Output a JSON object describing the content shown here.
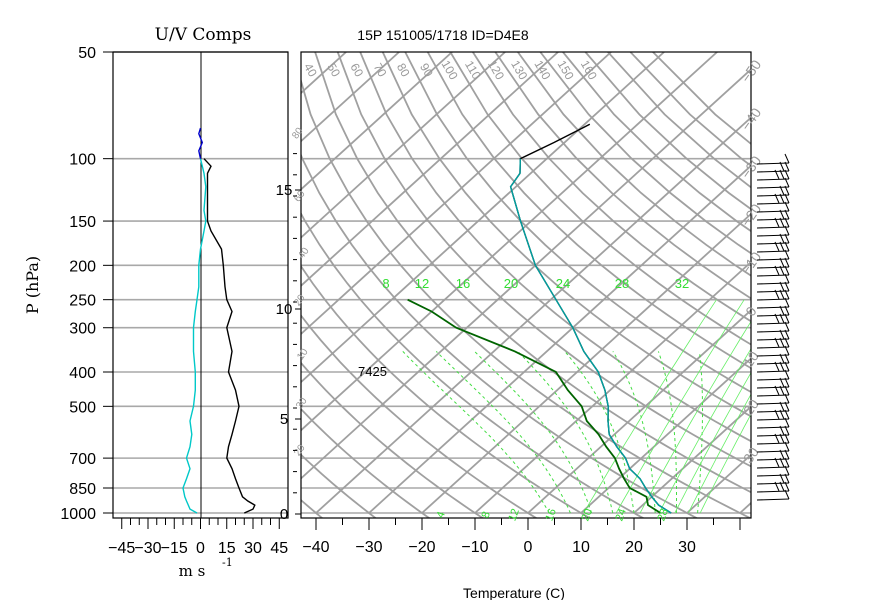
{
  "chart_data": [
    {
      "type": "line",
      "panel": "uv-components",
      "title": "U/V Comps",
      "xlabel": "m s",
      "xlabel_exponent": "-1",
      "ylabel": "P (hPa)",
      "xlim": [
        -50,
        50
      ],
      "ylim": [
        1000,
        50
      ],
      "y_scale": "log",
      "x_ticks": [
        "−45",
        "−30",
        "−15",
        "0",
        "15",
        "30",
        "45"
      ],
      "y_ticks": [
        "50",
        "100",
        "150",
        "200",
        "250",
        "300",
        "400",
        "500",
        "700",
        "850",
        "1000"
      ],
      "series": [
        {
          "color": "#000000",
          "pressure": [
            1000,
            975,
            950,
            925,
            900,
            850,
            800,
            750,
            700,
            650,
            600,
            550,
            500,
            450,
            400,
            350,
            300,
            270,
            250,
            230,
            200,
            180,
            160,
            150,
            140,
            120,
            110,
            105,
            100
          ],
          "values": [
            25,
            30,
            31,
            27,
            24,
            22,
            20,
            18,
            15,
            16,
            18,
            20,
            22,
            20,
            16,
            18,
            15,
            18,
            15,
            14,
            13,
            12,
            6,
            4,
            4,
            4,
            4,
            6,
            2
          ]
        },
        {
          "color": "#00c8c8",
          "pressure": [
            1000,
            975,
            950,
            925,
            900,
            850,
            800,
            750,
            700,
            650,
            600,
            550,
            500,
            450,
            400,
            350,
            300,
            270,
            250,
            230,
            200,
            180,
            160,
            150,
            140,
            120,
            110,
            105,
            100
          ],
          "values": [
            -2,
            -6,
            -7,
            -8,
            -9,
            -10,
            -8,
            -6,
            -8,
            -6,
            -5,
            -6,
            -4,
            -3,
            -3,
            -4,
            -4,
            -3,
            -2,
            -1,
            -1,
            0,
            2,
            3,
            2,
            3,
            2,
            1,
            0
          ]
        },
        {
          "color": "#0000cc",
          "pressure": [
            100,
            95,
            90,
            85,
            82
          ],
          "values": [
            0,
            -1,
            1,
            -1,
            0
          ]
        }
      ]
    },
    {
      "type": "line",
      "panel": "skew-t",
      "title": "15P 151005/1718 ID=D4E8",
      "xlabel": "Temperature (C)",
      "xlim": [
        -45,
        40
      ],
      "ylim": [
        1000,
        50
      ],
      "y_scale": "log",
      "x_ticks": [
        "−40",
        "−30",
        "−20",
        "−10",
        "0",
        "10",
        "20",
        "30"
      ],
      "height_ticks_km": [
        "0",
        "5",
        "10",
        "15"
      ],
      "annotation": "7425",
      "mixing_ratio_labels": [
        "8",
        "12",
        "16",
        "20",
        "24",
        "28",
        "32"
      ],
      "bottom_labels": [
        "4",
        "8",
        "12",
        "16",
        "20",
        "24",
        "28"
      ],
      "top_labels": [
        "40",
        "50",
        "60",
        "70",
        "80",
        "90",
        "100",
        "110",
        "120",
        "130",
        "140",
        "150",
        "160"
      ],
      "right_labels": [
        "−50",
        "−40",
        "−30",
        "−20",
        "−10",
        "0",
        "10",
        "20",
        "30"
      ],
      "left_labels": [
        "80",
        "60",
        "40",
        "20",
        "10",
        "30",
        "20"
      ],
      "series": [
        {
          "color": "#000000",
          "pressure": [
            1000,
            950,
            900,
            850,
            800,
            750,
            700,
            650,
            600,
            550,
            500,
            450,
            400,
            350,
            300,
            250,
            200,
            150,
            120,
            110,
            100,
            90,
            80
          ],
          "values": [
            27,
            23,
            20,
            17,
            14,
            10,
            7,
            3,
            -1,
            -4,
            -7,
            -11,
            -16,
            -23,
            -30,
            -39,
            -50,
            -62,
            -71,
            -72,
            -75,
            -72,
            -69
          ]
        },
        {
          "color": "#00a0a0",
          "pressure": [
            1000,
            950,
            900,
            850,
            800,
            750,
            700,
            650,
            600,
            550,
            500,
            450,
            400,
            350,
            300,
            250,
            200,
            150,
            120,
            110,
            100
          ],
          "values": [
            27,
            23,
            20,
            17,
            14,
            10,
            7,
            3,
            -1,
            -4,
            -7,
            -11,
            -16,
            -23,
            -30,
            -39,
            -50,
            -62,
            -71,
            -72,
            -75
          ]
        },
        {
          "color": "#006400",
          "pressure": [
            1000,
            950,
            900,
            850,
            800,
            750,
            700,
            650,
            600,
            550,
            500,
            450,
            400,
            350,
            300,
            270,
            250
          ],
          "values": [
            25,
            21,
            19,
            14,
            11,
            8,
            5,
            1,
            -3,
            -8,
            -12,
            -18,
            -24,
            -36,
            -52,
            -60,
            -67
          ]
        }
      ]
    }
  ]
}
